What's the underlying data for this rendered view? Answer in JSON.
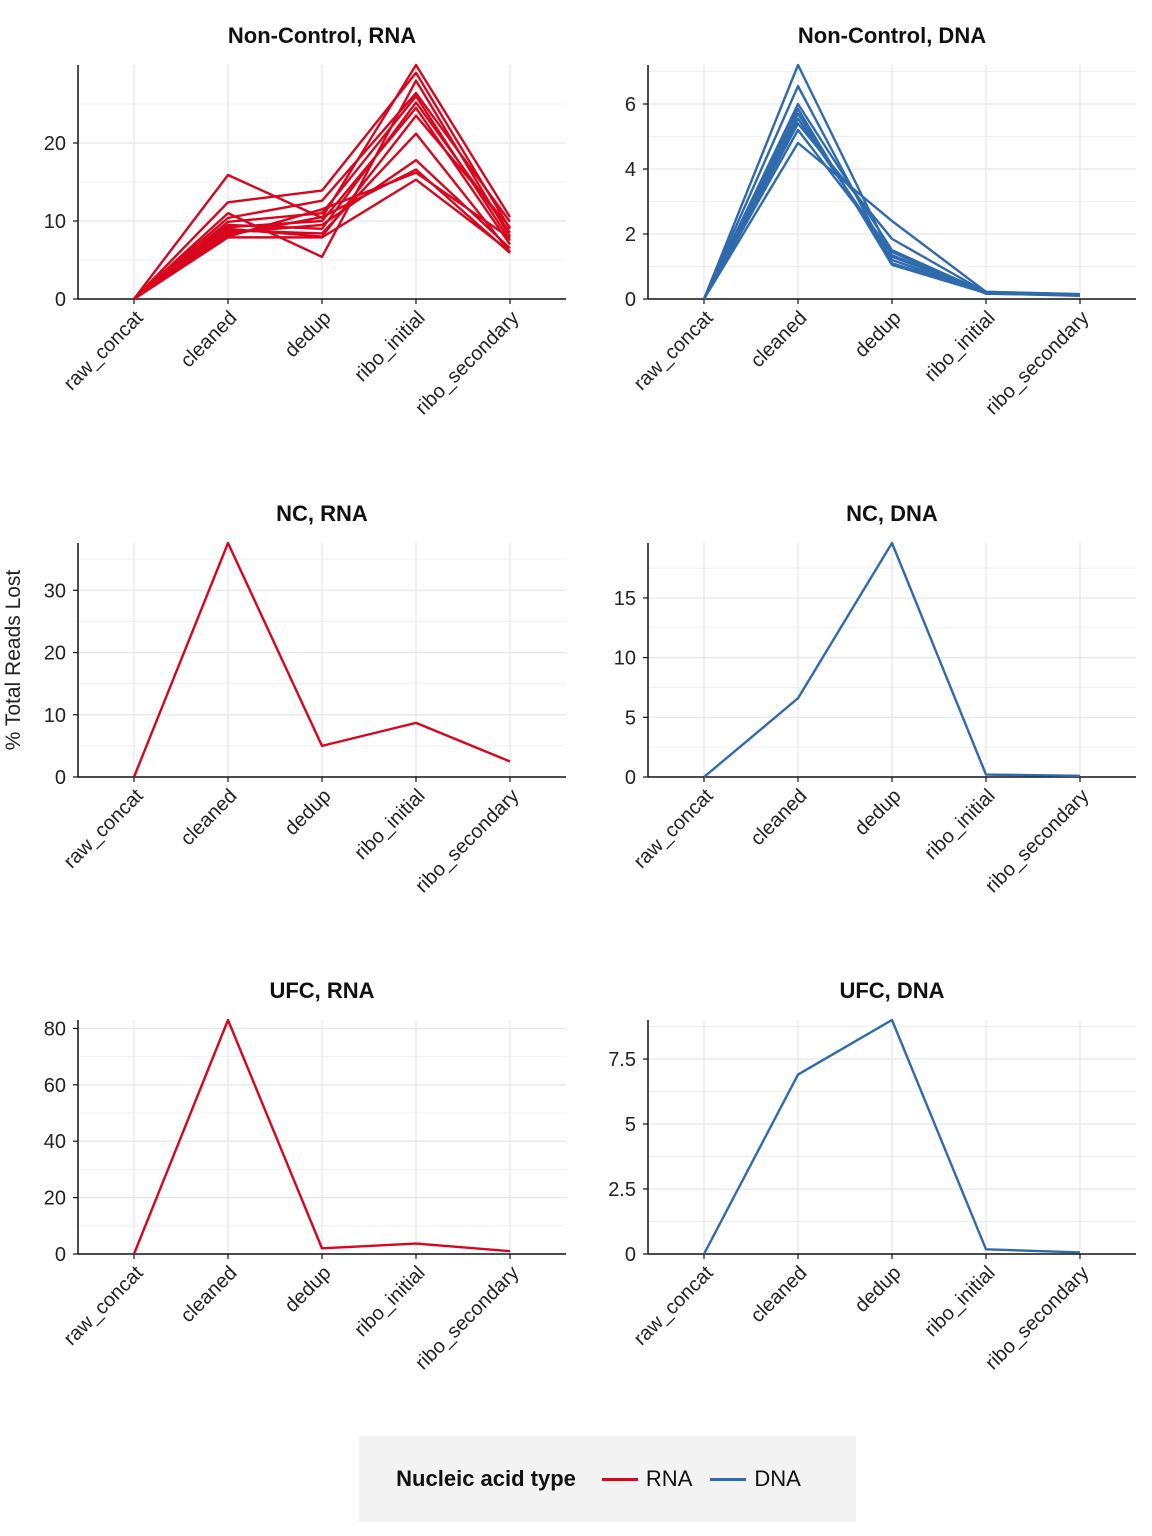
{
  "colors": {
    "RNA": "#d7061e",
    "DNA": "#2f6aac",
    "grid": "#e6e6e6",
    "axis": "#111111"
  },
  "legend": {
    "title": "Nucleic acid type",
    "items": [
      "RNA",
      "DNA"
    ]
  },
  "ylabel": "% Total Reads Lost",
  "chart_data": [
    {
      "type": "line",
      "title": "Non-Control, RNA",
      "nucleic": "RNA",
      "categories": [
        "raw_concat",
        "cleaned",
        "dedup",
        "ribo_initial",
        "ribo_secondary"
      ],
      "yticks": [
        {
          "v": 0,
          "t": "0"
        },
        {
          "v": 10,
          "t": "10"
        },
        {
          "v": 20,
          "t": "20"
        }
      ],
      "ylim": [
        0,
        30
      ],
      "series": [
        {
          "values": [
            0,
            15.9,
            10.4,
            30.0,
            10.5
          ]
        },
        {
          "values": [
            0,
            12.4,
            13.9,
            29.0,
            9.0
          ]
        },
        {
          "values": [
            0,
            11.0,
            5.4,
            28.0,
            8.0
          ]
        },
        {
          "values": [
            0,
            10.4,
            12.6,
            26.4,
            9.9
          ]
        },
        {
          "values": [
            0,
            9.9,
            11.0,
            26.0,
            7.5
          ]
        },
        {
          "values": [
            0,
            9.5,
            9.0,
            25.2,
            8.5
          ]
        },
        {
          "values": [
            0,
            9.2,
            10.0,
            24.5,
            7.0
          ]
        },
        {
          "values": [
            0,
            9.0,
            8.0,
            23.5,
            9.2
          ]
        },
        {
          "values": [
            0,
            8.8,
            8.4,
            21.2,
            6.0
          ]
        },
        {
          "values": [
            0,
            8.5,
            9.5,
            17.8,
            6.5
          ]
        },
        {
          "values": [
            0,
            8.2,
            10.5,
            16.6,
            5.9
          ]
        },
        {
          "values": [
            0,
            8.0,
            11.5,
            16.2,
            7.8
          ]
        },
        {
          "values": [
            0,
            7.9,
            7.9,
            15.3,
            6.1
          ]
        }
      ]
    },
    {
      "type": "line",
      "title": "Non-Control, DNA",
      "nucleic": "DNA",
      "categories": [
        "raw_concat",
        "cleaned",
        "dedup",
        "ribo_initial",
        "ribo_secondary"
      ],
      "yticks": [
        {
          "v": 0,
          "t": "0"
        },
        {
          "v": 2,
          "t": "2"
        },
        {
          "v": 4,
          "t": "4"
        },
        {
          "v": 6,
          "t": "6"
        }
      ],
      "ylim": [
        0,
        7.2
      ],
      "series": [
        {
          "values": [
            0,
            7.2,
            1.3,
            0.22,
            0.14
          ]
        },
        {
          "values": [
            0,
            6.55,
            1.1,
            0.2,
            0.12
          ]
        },
        {
          "values": [
            0,
            6.0,
            1.5,
            0.2,
            0.13
          ]
        },
        {
          "values": [
            0,
            5.85,
            1.05,
            0.18,
            0.12
          ]
        },
        {
          "values": [
            0,
            5.7,
            1.2,
            0.2,
            0.11
          ]
        },
        {
          "values": [
            0,
            5.55,
            1.35,
            0.17,
            0.1
          ]
        },
        {
          "values": [
            0,
            5.4,
            1.85,
            0.2,
            0.12
          ]
        },
        {
          "values": [
            0,
            5.2,
            1.45,
            0.16,
            0.12
          ]
        },
        {
          "values": [
            0,
            4.8,
            2.4,
            0.22,
            0.15
          ]
        }
      ]
    },
    {
      "type": "line",
      "title": "NC, RNA",
      "nucleic": "RNA",
      "categories": [
        "raw_concat",
        "cleaned",
        "dedup",
        "ribo_initial",
        "ribo_secondary"
      ],
      "yticks": [
        {
          "v": 0,
          "t": "0"
        },
        {
          "v": 10,
          "t": "10"
        },
        {
          "v": 20,
          "t": "20"
        },
        {
          "v": 30,
          "t": "30"
        }
      ],
      "ylim": [
        0,
        37.6
      ],
      "series": [
        {
          "values": [
            0,
            37.6,
            5.0,
            8.7,
            2.5
          ]
        }
      ]
    },
    {
      "type": "line",
      "title": "NC, DNA",
      "nucleic": "DNA",
      "categories": [
        "raw_concat",
        "cleaned",
        "dedup",
        "ribo_initial",
        "ribo_secondary"
      ],
      "yticks": [
        {
          "v": 0,
          "t": "0"
        },
        {
          "v": 5,
          "t": "5"
        },
        {
          "v": 10,
          "t": "10"
        },
        {
          "v": 15,
          "t": "15"
        }
      ],
      "ylim": [
        0,
        19.6
      ],
      "series": [
        {
          "values": [
            0,
            6.6,
            19.6,
            0.2,
            0.1
          ]
        }
      ]
    },
    {
      "type": "line",
      "title": "UFC, RNA",
      "nucleic": "RNA",
      "categories": [
        "raw_concat",
        "cleaned",
        "dedup",
        "ribo_initial",
        "ribo_secondary"
      ],
      "yticks": [
        {
          "v": 0,
          "t": "0"
        },
        {
          "v": 20,
          "t": "20"
        },
        {
          "v": 40,
          "t": "40"
        },
        {
          "v": 60,
          "t": "60"
        },
        {
          "v": 80,
          "t": "80"
        }
      ],
      "ylim": [
        0,
        83
      ],
      "series": [
        {
          "values": [
            0,
            83.0,
            2.0,
            3.7,
            1.0
          ]
        }
      ]
    },
    {
      "type": "line",
      "title": "UFC, DNA",
      "nucleic": "DNA",
      "categories": [
        "raw_concat",
        "cleaned",
        "dedup",
        "ribo_initial",
        "ribo_secondary"
      ],
      "yticks": [
        {
          "v": 0,
          "t": "0"
        },
        {
          "v": 2.5,
          "t": "2.5"
        },
        {
          "v": 5,
          "t": "5"
        },
        {
          "v": 7.5,
          "t": "7.5"
        }
      ],
      "ylim": [
        0,
        9.0
      ],
      "series": [
        {
          "values": [
            0,
            6.9,
            9.0,
            0.18,
            0.06
          ]
        }
      ]
    }
  ]
}
